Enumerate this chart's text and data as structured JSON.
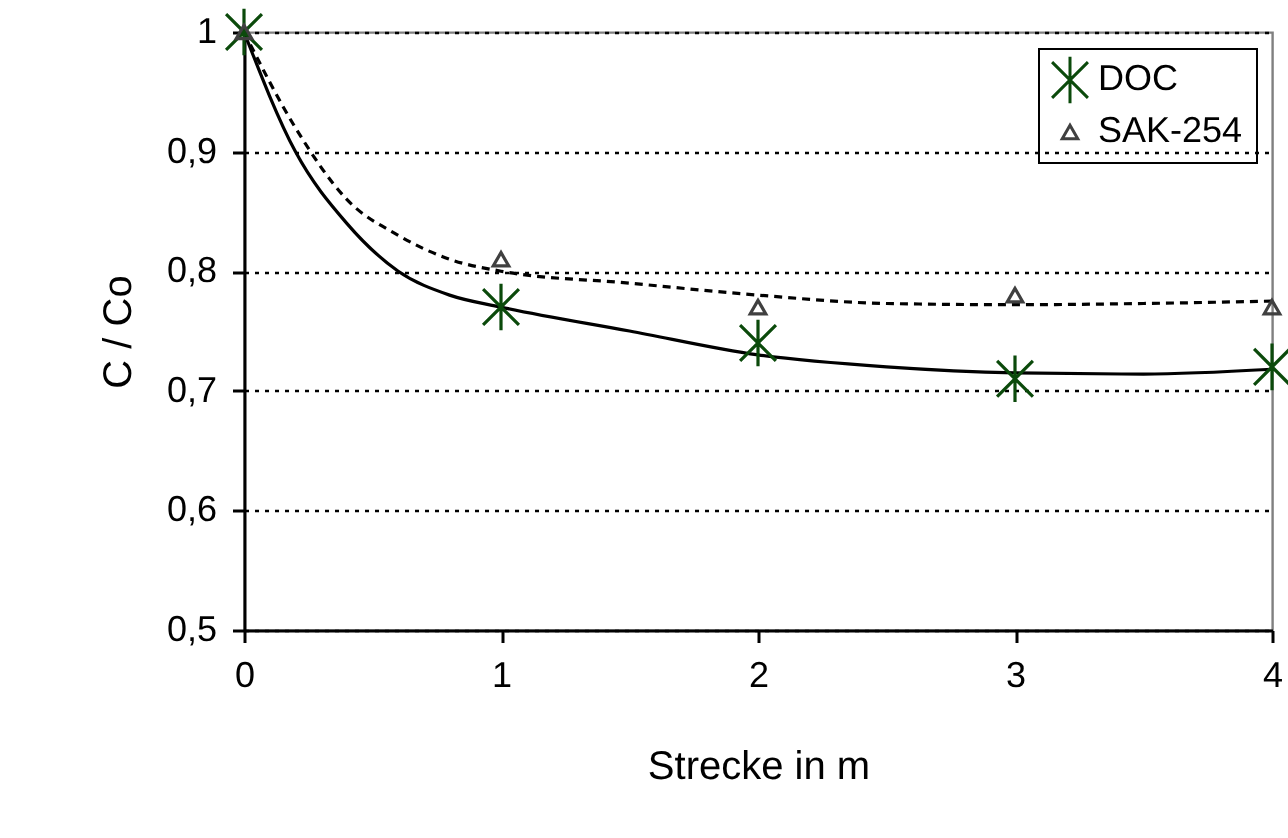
{
  "chart_data": {
    "type": "scatter",
    "xlabel": "Strecke in m",
    "ylabel": "C / Co",
    "xlim": [
      0,
      4
    ],
    "xticks": [
      0,
      1,
      2,
      3,
      4
    ],
    "ylim": [
      0.5,
      1
    ],
    "yticks": [
      {
        "value": 0.5,
        "label": "0,5"
      },
      {
        "value": 0.6,
        "label": "0,6"
      },
      {
        "value": 0.7,
        "label": "0,7"
      },
      {
        "value": 0.8,
        "label": "0,8"
      },
      {
        "value": 0.9,
        "label": "0,9"
      },
      1
    ],
    "grid": "y",
    "legend": "top right",
    "x": [
      0,
      1,
      2,
      3,
      4
    ],
    "series": [
      {
        "type": "line",
        "color": "#000000",
        "line_style": "solid",
        "x": [
          0,
          0.2,
          0.4,
          0.6,
          0.8,
          1,
          1.5,
          2,
          2.5,
          3,
          3.5,
          4
        ],
        "values": [
          1,
          0.9,
          0.84,
          0.8,
          0.78,
          0.77,
          0.75,
          0.73,
          0.72,
          0.715,
          0.714,
          0.718
        ]
      },
      {
        "type": "line",
        "color": "#000000",
        "line_style": "dashed",
        "x": [
          0,
          0.2,
          0.4,
          0.6,
          0.8,
          1,
          1.5,
          2,
          2.5,
          3,
          3.5,
          4
        ],
        "values": [
          1,
          0.92,
          0.86,
          0.83,
          0.81,
          0.8,
          0.79,
          0.78,
          0.773,
          0.772,
          0.773,
          0.775
        ]
      },
      {
        "name": "DOC",
        "color": "#0b4a0b",
        "marker": "cross",
        "values": [
          1,
          0.77,
          0.74,
          0.71,
          0.72
        ]
      },
      {
        "name": "SAK-254",
        "color": "#404040",
        "marker": "triangle",
        "values": [
          1,
          0.81,
          0.77,
          0.78,
          0.77
        ]
      }
    ]
  }
}
